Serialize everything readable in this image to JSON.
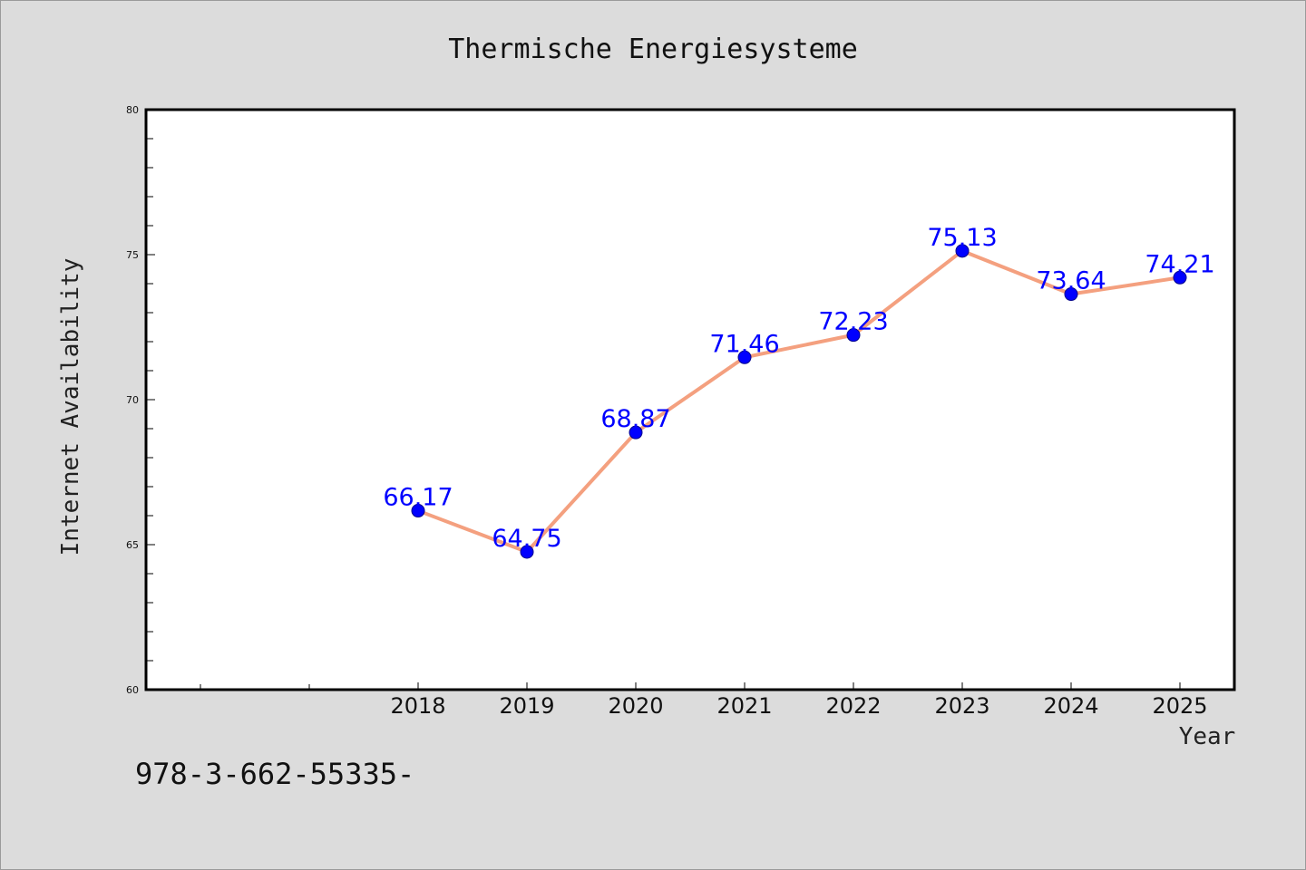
{
  "footer": {
    "text": "978-3-662-55335-"
  },
  "chart_data": {
    "type": "line",
    "title": "Thermische Energiesysteme",
    "xlabel": "Year",
    "ylabel": "Internet Availability",
    "categories": [
      "2018",
      "2019",
      "2020",
      "2021",
      "2022",
      "2023",
      "2024",
      "2025"
    ],
    "values": [
      66.17,
      64.75,
      68.87,
      71.46,
      72.23,
      75.13,
      73.64,
      74.21
    ],
    "data_labels": [
      "66.17",
      "64.75",
      "68.87",
      "71.46",
      "72.23",
      "75.13",
      "73.64",
      "74.21"
    ],
    "ylim": [
      60,
      80
    ],
    "yticks": [
      60,
      65,
      70,
      75,
      80
    ],
    "grid": false,
    "legend": "none",
    "colors": {
      "line": "#f4a07f",
      "marker": "#0000ff",
      "label": "#0000ff",
      "background": "#dcdcdc",
      "plot_background": "#ffffff"
    }
  }
}
